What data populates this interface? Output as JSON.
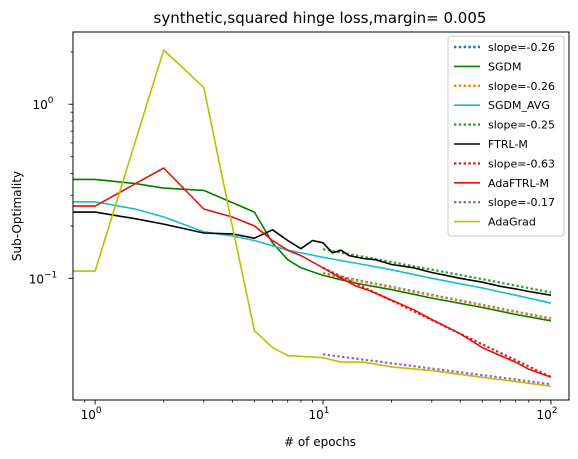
{
  "chart_data": {
    "type": "line",
    "title": "synthetic,squared hinge loss,margin= 0.005",
    "xlabel": "# of epochs",
    "ylabel": "Sub-Optimality",
    "xscale": "log",
    "yscale": "log",
    "xlim": [
      0.8,
      120
    ],
    "ylim": [
      0.02,
      2.6
    ],
    "x_ticks": [
      {
        "value": 1,
        "base": "10",
        "exp": "0"
      },
      {
        "value": 10,
        "base": "10",
        "exp": "1"
      },
      {
        "value": 100,
        "base": "10",
        "exp": "2"
      }
    ],
    "y_ticks": [
      {
        "value": 0.1,
        "base": "10",
        "exp": "−1"
      },
      {
        "value": 1,
        "base": "10",
        "exp": "0"
      }
    ],
    "grid": false,
    "legend_position": "top-right",
    "series": [
      {
        "name": "slope=-0.26",
        "color": "#1f77b4",
        "style": "dotted",
        "x": [
          10,
          20,
          50,
          100
        ],
        "y": [
          0.107,
          0.0893,
          0.0704,
          0.0587
        ]
      },
      {
        "name": "SGDM",
        "color": "#008000",
        "style": "solid",
        "x": [
          0.8,
          1,
          1.5,
          2,
          3,
          5,
          6,
          7,
          8,
          10,
          12,
          15,
          20,
          30,
          50,
          70,
          100
        ],
        "y": [
          0.37,
          0.37,
          0.35,
          0.33,
          0.32,
          0.24,
          0.16,
          0.128,
          0.115,
          0.104,
          0.098,
          0.092,
          0.086,
          0.077,
          0.068,
          0.062,
          0.057
        ]
      },
      {
        "name": "slope=-0.26",
        "color": "#ff7f0e",
        "style": "dotted",
        "x": [
          10,
          20,
          50,
          100
        ],
        "y": [
          0.106,
          0.0886,
          0.0699,
          0.0582
        ]
      },
      {
        "name": "SGDM_AVG",
        "color": "#17becf",
        "style": "solid",
        "x": [
          0.8,
          1,
          1.5,
          2,
          3,
          4,
          5,
          7,
          10,
          15,
          20,
          30,
          50,
          70,
          100
        ],
        "y": [
          0.275,
          0.275,
          0.25,
          0.225,
          0.185,
          0.175,
          0.165,
          0.145,
          0.132,
          0.12,
          0.112,
          0.1,
          0.088,
          0.08,
          0.072
        ]
      },
      {
        "name": "slope=-0.25",
        "color": "#2ca02c",
        "style": "dotted",
        "x": [
          10,
          20,
          50,
          100
        ],
        "y": [
          0.147,
          0.124,
          0.099,
          0.083
        ]
      },
      {
        "name": "FTRL-M",
        "color": "#000000",
        "style": "solid",
        "x": [
          0.8,
          1,
          1.5,
          2,
          3,
          4,
          5,
          6,
          7,
          8,
          9,
          10,
          11,
          12,
          13,
          15,
          17,
          20,
          25,
          30,
          40,
          50,
          60,
          70,
          80,
          100
        ],
        "y": [
          0.24,
          0.24,
          0.22,
          0.205,
          0.182,
          0.18,
          0.17,
          0.19,
          0.165,
          0.148,
          0.165,
          0.16,
          0.14,
          0.145,
          0.135,
          0.13,
          0.128,
          0.12,
          0.115,
          0.108,
          0.1,
          0.095,
          0.09,
          0.087,
          0.084,
          0.08
        ]
      },
      {
        "name": "slope=-0.63",
        "color": "#d62728",
        "style": "dotted",
        "x": [
          10,
          20,
          50,
          100
        ],
        "y": [
          0.115,
          0.0745,
          0.0418,
          0.0271
        ]
      },
      {
        "name": "AdaFTRL-M",
        "color": "#e8100c",
        "style": "solid",
        "x": [
          0.8,
          1,
          2,
          3,
          4,
          5,
          6,
          7,
          8,
          10,
          12,
          14,
          16,
          20,
          25,
          30,
          40,
          50,
          60,
          70,
          80,
          100
        ],
        "y": [
          0.26,
          0.26,
          0.43,
          0.25,
          0.225,
          0.2,
          0.165,
          0.145,
          0.135,
          0.115,
          0.1,
          0.09,
          0.085,
          0.075,
          0.066,
          0.058,
          0.048,
          0.04,
          0.036,
          0.033,
          0.03,
          0.027
        ]
      },
      {
        "name": "slope=-0.17",
        "color": "#9467bd",
        "style": "dotted",
        "x": [
          10,
          20,
          50,
          100
        ],
        "y": [
          0.0366,
          0.0325,
          0.0278,
          0.0246
        ]
      },
      {
        "name": "AdaGrad",
        "color": "#bfbf00",
        "style": "solid",
        "x": [
          0.8,
          1,
          2,
          3,
          4,
          5,
          6,
          7,
          10,
          12,
          15,
          20,
          30,
          50,
          70,
          100
        ],
        "y": [
          0.11,
          0.11,
          2.05,
          1.25,
          0.2,
          0.05,
          0.04,
          0.036,
          0.035,
          0.033,
          0.033,
          0.031,
          0.0295,
          0.027,
          0.0255,
          0.024
        ]
      }
    ]
  }
}
